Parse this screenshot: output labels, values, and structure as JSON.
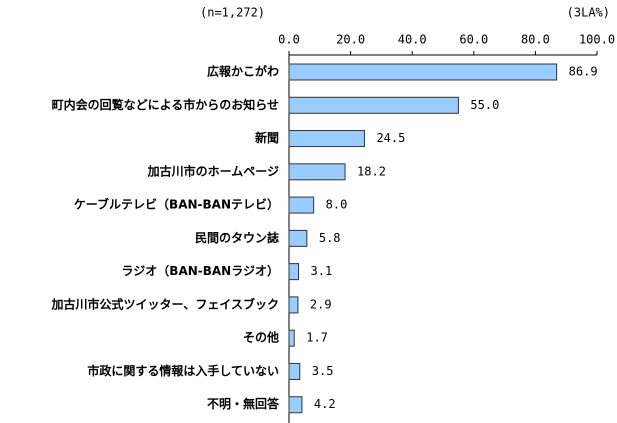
{
  "chart_data": {
    "type": "bar",
    "orientation": "horizontal",
    "annotations": [
      "(n=1,272)",
      "(3LA%)"
    ],
    "categories": [
      "広報かこがわ",
      "町内会の回覧などによる市からのお知らせ",
      "新聞",
      "加古川市のホームページ",
      "ケーブルテレビ（BAN-BANテレビ）",
      "民間のタウン誌",
      "ラジオ（BAN-BANラジオ）",
      "加古川市公式ツイッター、フェイスブック",
      "その他",
      "市政に関する情報は入手していない",
      "不明・無回答"
    ],
    "values": [
      86.9,
      55.0,
      24.5,
      18.2,
      8.0,
      5.8,
      3.1,
      2.9,
      1.7,
      3.5,
      4.2
    ],
    "value_labels": [
      "86.9",
      "55.0",
      "24.5",
      "18.2",
      "8.0",
      "5.8",
      "3.1",
      "2.9",
      "1.7",
      "3.5",
      "4.2"
    ],
    "color": "#99ccff",
    "xlim": [
      0,
      100
    ],
    "xticks": [
      {
        "value": 0,
        "label": "0.0"
      },
      {
        "value": 20,
        "label": "20.0"
      },
      {
        "value": 40,
        "label": "40.0"
      },
      {
        "value": 60,
        "label": "60.0"
      },
      {
        "value": 80,
        "label": "80.0"
      },
      {
        "value": 100,
        "label": "100.0"
      }
    ]
  }
}
